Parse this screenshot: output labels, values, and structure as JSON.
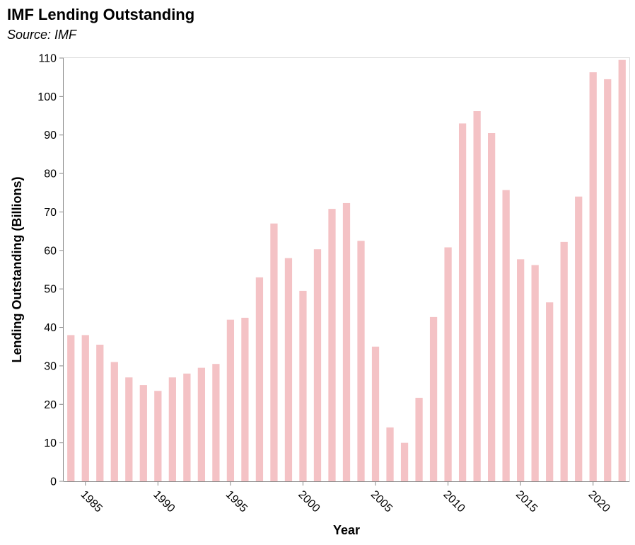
{
  "chart_data": {
    "type": "bar",
    "title": "IMF Lending Outstanding",
    "subtitle": "Source: IMF",
    "xlabel": "Year",
    "ylabel": "Lending Outstanding (Billions)",
    "x": [
      1984,
      1985,
      1986,
      1987,
      1988,
      1989,
      1990,
      1991,
      1992,
      1993,
      1994,
      1995,
      1996,
      1997,
      1998,
      1999,
      2000,
      2001,
      2002,
      2003,
      2004,
      2005,
      2006,
      2007,
      2008,
      2009,
      2010,
      2011,
      2012,
      2013,
      2014,
      2015,
      2016,
      2017,
      2018,
      2019,
      2020,
      2021,
      2022
    ],
    "values": [
      38,
      38,
      35.5,
      31,
      27,
      25,
      23.5,
      27,
      28,
      29.5,
      30.5,
      42,
      42.5,
      53,
      67,
      58,
      49.5,
      60.3,
      70.8,
      72.3,
      62.5,
      35,
      14,
      10,
      21.7,
      42.7,
      60.8,
      93,
      96.2,
      90.5,
      75.7,
      57.7,
      56.2,
      46.5,
      62.2,
      74,
      106.3,
      104.5,
      109.5
    ],
    "xticks": [
      "1985",
      "1990",
      "1995",
      "2000",
      "2005",
      "2010",
      "2015",
      "2020"
    ],
    "yticks": [
      "0",
      "10",
      "20",
      "30",
      "40",
      "50",
      "60",
      "70",
      "80",
      "90",
      "100",
      "110"
    ],
    "ylim": [
      0,
      110
    ],
    "bar_color": "#f4c2c5",
    "grid": false,
    "legend": "none"
  }
}
